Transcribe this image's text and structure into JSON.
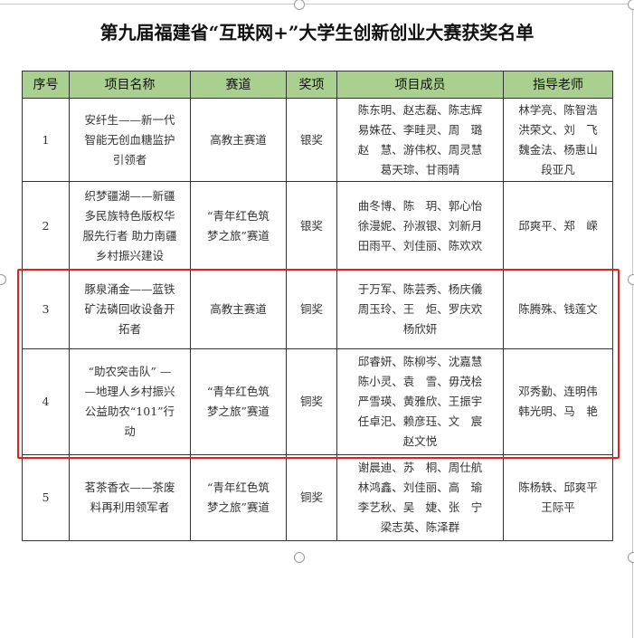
{
  "title": "第九届福建省“互联网+”大学生创新创业大赛获奖名单",
  "headers": [
    "序号",
    "项目名称",
    "赛道",
    "奖项",
    "项目成员",
    "指导老师"
  ],
  "rows": [
    {
      "no": "1",
      "name": "安纤生——新一代\n智能无创血糖监护\n引领者",
      "track": "高教主赛道",
      "award": "银奖",
      "members": "陈东明、赵志磊、陈志辉\n易姝莅、李畦灵、周　璐\n赵　慧、游伟权、周灵慧\n葛天琮、甘雨晴",
      "advisors": "林学亮、陈智浩\n洪荣文、刘　飞\n魏金法、杨惠山\n段亚凡"
    },
    {
      "no": "2",
      "name": "织梦疆湖——新疆\n多民族特色版权华\n服先行者 助力南疆\n乡村振兴建设",
      "track": "“青年红色筑\n梦之旅”赛道",
      "award": "银奖",
      "members": "曲冬博、陈　玥、郭心怡\n徐漫妮、孙淑银、刘新月\n田雨平、刘佳丽、陈欢欢",
      "advisors": "邱爽平、郑　嵘"
    },
    {
      "no": "3",
      "name": "豚泉涌金——蓝铁\n矿法磷回收设备开\n拓者",
      "track": "高教主赛道",
      "award": "铜奖",
      "members": "于万军、陈芸秀、杨庆儀\n周玉玲、王　炬、罗庆欢\n杨欣妍",
      "advisors": "陈腾殊、钱莲文"
    },
    {
      "no": "4",
      "name": "“助农突击队” —\n—地理人乡村振兴\n公益助农“101”行\n动",
      "track": "“青年红色筑\n梦之旅”赛道",
      "award": "铜奖",
      "members": "邱睿妍、陈柳岑、沈嘉慧\n陈小灵、袁　雪、毋茂桧\n严雪瑛、黄雅欣、王振宇\n任卓汜、赖彦珏、文　宸\n赵文悦",
      "advisors": "邓秀勤、连明伟\n韩光明、马　艳"
    },
    {
      "no": "5",
      "name": "茗茶香衣——茶废\n料再利用领军者",
      "track": "“青年红色筑\n梦之旅”赛道",
      "award": "铜奖",
      "members": "谢晨迪、苏　桐、周仕航\n林鸿鑫、刘佳丽、高　瑜\n李艺秋、吴　婕、张　宁\n梁志英、陈泽群",
      "advisors": "陈杨轶、邱爽平\n王际平"
    }
  ],
  "colors": {
    "header_bg": "#a9d08e",
    "highlight_border": "#e8201b"
  }
}
